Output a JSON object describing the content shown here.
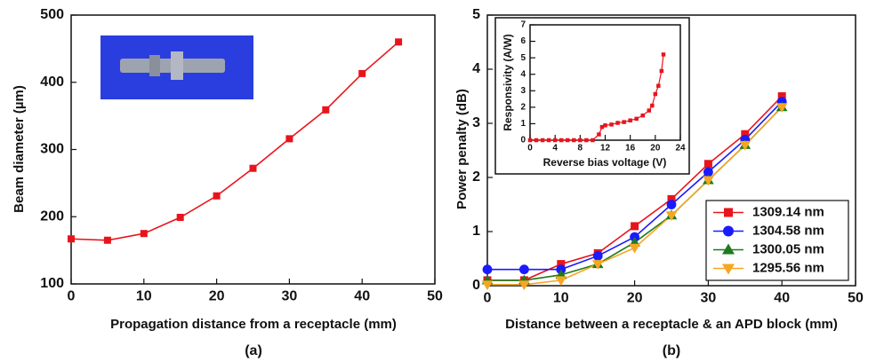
{
  "chart_data": [
    {
      "type": "line",
      "caption": "(a)",
      "x_label": "Propagation distance from a receptacle (mm)",
      "y_label": "Beam diameter (µm)",
      "x": [
        0,
        5,
        10,
        15,
        20,
        25,
        30,
        35,
        40,
        45
      ],
      "values": [
        167,
        165,
        175,
        199,
        231,
        272,
        316,
        359,
        413,
        460
      ],
      "color": "#e8141c",
      "marker": "square",
      "xlim": [
        0,
        50
      ],
      "xticks": [
        0,
        10,
        20,
        30,
        40,
        50
      ],
      "ylim": [
        100,
        500
      ],
      "yticks": [
        100,
        200,
        300,
        400,
        500
      ]
    },
    {
      "type": "line",
      "caption": "(b)",
      "x_label": "Distance between a receptacle & an APD block (mm)",
      "y_label": "Power penalty (dB)",
      "x": [
        0,
        5,
        10,
        15,
        20,
        25,
        30,
        35,
        40
      ],
      "series": [
        {
          "name": "1309.14 nm",
          "color": "#e8141c",
          "marker": "square",
          "values": [
            0.1,
            0.1,
            0.4,
            0.6,
            1.1,
            1.6,
            2.25,
            2.8,
            3.5
          ]
        },
        {
          "name": "1304.58 nm",
          "color": "#1a1aff",
          "marker": "circle",
          "values": [
            0.3,
            0.3,
            0.3,
            0.55,
            0.9,
            1.5,
            2.1,
            2.7,
            3.4
          ]
        },
        {
          "name": "1300.05 nm",
          "color": "#1e7a1e",
          "marker": "triangle-up",
          "values": [
            0.1,
            0.1,
            0.2,
            0.4,
            0.8,
            1.3,
            1.95,
            2.6,
            3.3
          ]
        },
        {
          "name": "1295.56 nm",
          "color": "#f5a623",
          "marker": "triangle-down",
          "values": [
            0.02,
            0.02,
            0.1,
            0.4,
            0.7,
            1.3,
            1.95,
            2.6,
            3.3
          ]
        }
      ],
      "legend": "lower right",
      "xlim": [
        0,
        50
      ],
      "xticks": [
        0,
        10,
        20,
        30,
        40,
        50
      ],
      "ylim": [
        0,
        5
      ],
      "yticks": [
        0,
        1,
        2,
        3,
        4,
        5
      ]
    },
    {
      "type": "line",
      "x_label": "Reverse bias voltage (V)",
      "y_label": "Responsivity (A/W)",
      "x": [
        0,
        1,
        2,
        3,
        4,
        5,
        6,
        7,
        8,
        9,
        10,
        11,
        11.5,
        12,
        13,
        14,
        15,
        16,
        17,
        18,
        19,
        19.5,
        20,
        20.5,
        21,
        21.3
      ],
      "values": [
        0,
        0,
        0,
        0,
        0,
        0,
        0,
        0,
        0,
        0,
        0,
        0.35,
        0.8,
        0.9,
        0.95,
        1.05,
        1.1,
        1.2,
        1.3,
        1.5,
        1.8,
        2.1,
        2.8,
        3.3,
        4.2,
        5.2
      ],
      "color": "#e8141c",
      "marker": "square",
      "xlim": [
        0,
        24
      ],
      "xticks": [
        0,
        4,
        8,
        12,
        16,
        20,
        24
      ],
      "ylim": [
        0,
        7
      ],
      "yticks": [
        0,
        1,
        2,
        3,
        4,
        5,
        6,
        7
      ]
    }
  ]
}
